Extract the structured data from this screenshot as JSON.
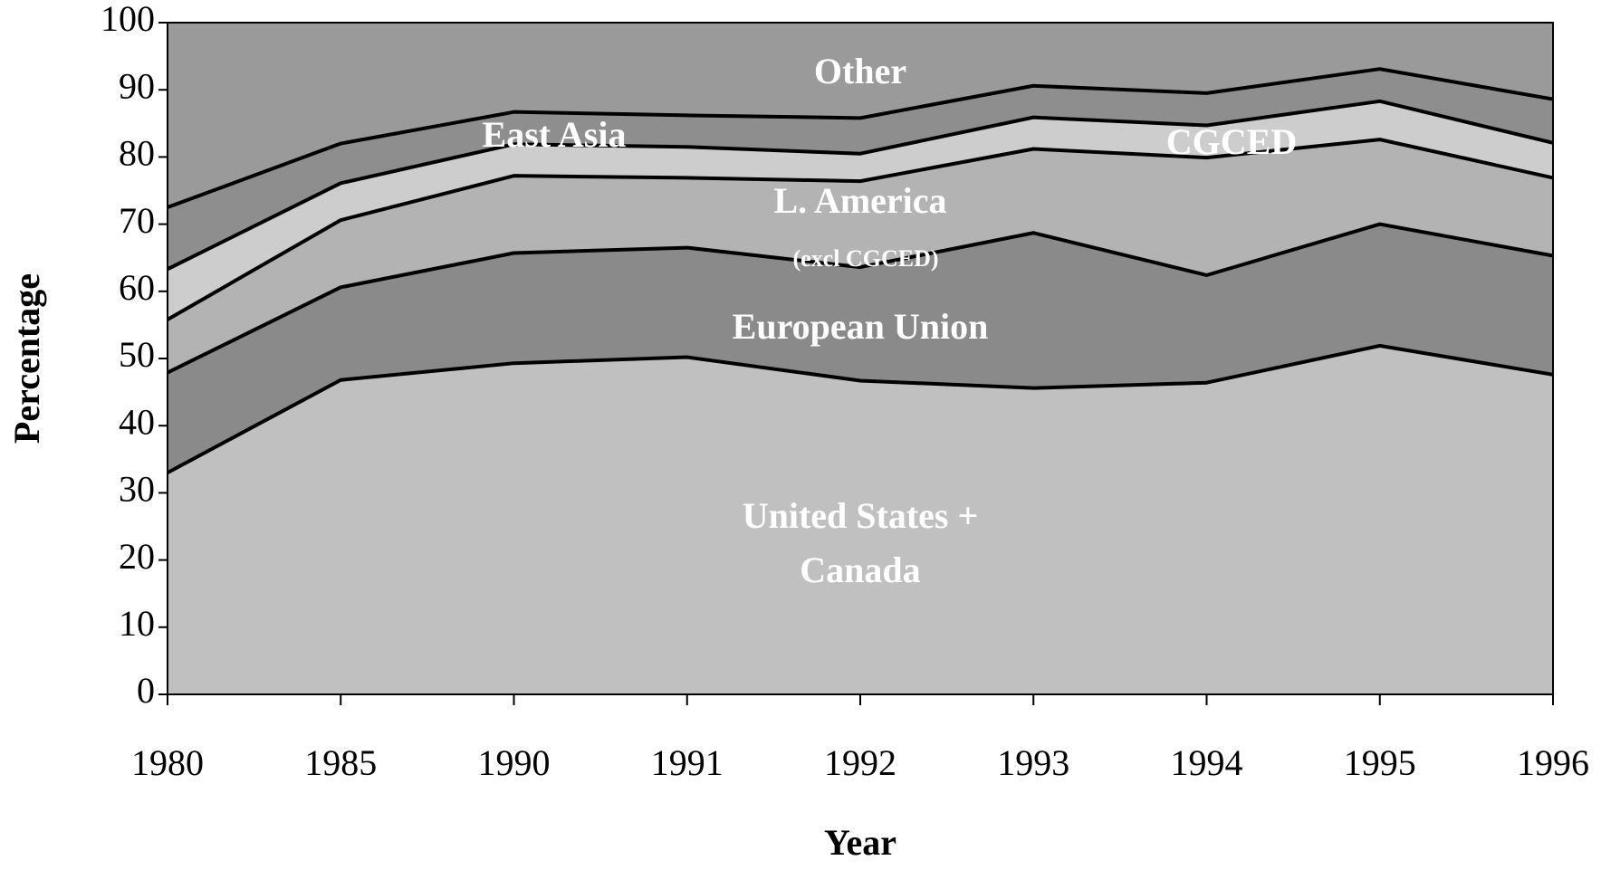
{
  "chart_data": {
    "type": "stacked_area",
    "x_label": "Year",
    "y_label": "Percentage",
    "categories": [
      "1980",
      "1985",
      "1990",
      "1991",
      "1992",
      "1993",
      "1994",
      "1995",
      "1996"
    ],
    "ylim": [
      0,
      100
    ],
    "yticks": [
      0,
      10,
      20,
      30,
      40,
      50,
      60,
      70,
      80,
      90,
      100
    ],
    "series": [
      {
        "name": "United States + Canada",
        "color": "#c0c0c0",
        "values": [
          33,
          46.8,
          49.3,
          50.2,
          46.7,
          45.6,
          46.4,
          51.9,
          47.6
        ]
      },
      {
        "name": "European Union",
        "color": "#8a8a8a",
        "values": [
          14.9,
          13.8,
          16.4,
          16.3,
          16.9,
          23.1,
          16.0,
          18.1,
          17.7
        ]
      },
      {
        "name": "L. America",
        "color": "#b3b3b3",
        "values": [
          7.9,
          10.0,
          11.5,
          10.4,
          12.8,
          12.5,
          17.5,
          12.6,
          11.6
        ]
      },
      {
        "name": "CGCED",
        "color": "#cdcdcd",
        "values": [
          7.5,
          5.5,
          4.7,
          4.6,
          4.1,
          4.7,
          4.8,
          5.7,
          5.2
        ]
      },
      {
        "name": "East Asia",
        "color": "#8e8e8e",
        "values": [
          9.2,
          5.9,
          4.8,
          4.7,
          5.3,
          4.7,
          4.8,
          4.8,
          6.5
        ]
      },
      {
        "name": "Other",
        "color": "#9a9a9a",
        "values": [
          27.5,
          18,
          13.3,
          13.8,
          14.2,
          9.4,
          10.5,
          6.9,
          11.4
        ]
      }
    ],
    "annotations": [
      "(excl CGCED)"
    ]
  }
}
